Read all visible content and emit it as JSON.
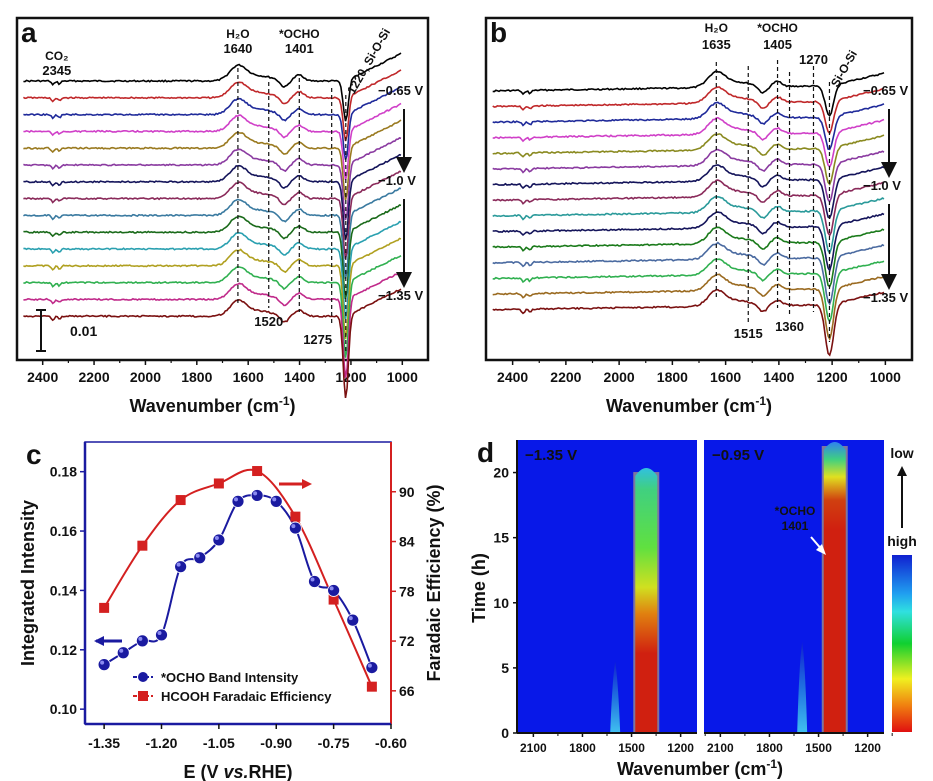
{
  "chart_data": [
    {
      "panel": "a",
      "type": "line",
      "title": "",
      "xlabel": "Wavenumber (cm-1)",
      "xlabel_main": "Wavenumber (cm",
      "xlabel_sup": "-1",
      "xlabel_close": ")",
      "ylabel": "",
      "xlim": [
        2500,
        900
      ],
      "xticks": [
        2400,
        2200,
        2000,
        1800,
        1600,
        1400,
        1200,
        1000
      ],
      "scale_bar_label": "0.01",
      "n_spectra": 15,
      "series_colors": [
        "#000000",
        "#c0282a",
        "#1f2a9a",
        "#d040c8",
        "#9a7a20",
        "#8a3aa0",
        "#14145a",
        "#8a2a5a",
        "#3a7aa0",
        "#1a6a1a",
        "#2aa0b0",
        "#b0a020",
        "#30b050",
        "#c02a8a",
        "#7a1010"
      ],
      "voltage_labels": [
        "−0.65 V",
        "−1.0 V",
        "−1.35 V"
      ],
      "peaks": [
        {
          "label_top": "CO₂",
          "label_bottom": "2345",
          "x": 2345,
          "line": false
        },
        {
          "label_top": "H₂O",
          "label_bottom": "1640",
          "x": 1640,
          "line": true
        },
        {
          "label_top": "*OCHO",
          "label_bottom": "1401",
          "x": 1401,
          "line": true
        },
        {
          "label_top": "",
          "label_bottom": "1520",
          "x": 1520,
          "line": true,
          "label_pos": "below"
        },
        {
          "label_top": "",
          "label_bottom": "1275",
          "x": 1275,
          "line": true,
          "label_pos": "below"
        },
        {
          "label_top": "1220, Si-O-Si",
          "label_bottom": "",
          "x": 1220,
          "line": true,
          "label_pos": "rotated"
        }
      ]
    },
    {
      "panel": "b",
      "type": "line",
      "xlabel": "Wavenumber (cm-1)",
      "xlabel_main": "Wavenumber (cm",
      "xlabel_sup": "-1",
      "xlabel_close": ")",
      "xlim": [
        2500,
        900
      ],
      "xticks": [
        2400,
        2200,
        2000,
        1800,
        1600,
        1400,
        1200,
        1000
      ],
      "n_spectra": 15,
      "series_colors": [
        "#000000",
        "#c0282a",
        "#1f2a9a",
        "#d040c8",
        "#8a8a20",
        "#8a3aa0",
        "#14145a",
        "#8a2a5a",
        "#2a9a9a",
        "#14145a",
        "#1a7a1a",
        "#4a6aa0",
        "#30b050",
        "#9a6a20",
        "#7a1010"
      ],
      "voltage_labels": [
        "−0.65 V",
        "−1.0 V",
        "−1.35 V"
      ],
      "peaks": [
        {
          "label_top": "H₂O",
          "label_bottom": "1635",
          "x": 1635,
          "line": true
        },
        {
          "label_top": "*OCHO",
          "label_bottom": "1405",
          "x": 1405,
          "line": true
        },
        {
          "label_top": "",
          "label_bottom": "1270",
          "x": 1270,
          "line": true
        },
        {
          "label_top": "",
          "label_bottom": "1515",
          "x": 1515,
          "line": true,
          "label_pos": "below"
        },
        {
          "label_top": "",
          "label_bottom": "1360",
          "x": 1360,
          "line": true,
          "label_pos": "below"
        },
        {
          "label_top": "Si-O-Si",
          "label_bottom": "",
          "x": 1210,
          "line": true,
          "label_pos": "rotated"
        }
      ]
    },
    {
      "panel": "c",
      "type": "line",
      "xlabel": "E (V vs.RHE)",
      "xlabel_pre": "E (V ",
      "xlabel_italic": "vs.",
      "xlabel_post": "RHE)",
      "ylabel": "Integrated Intensity",
      "ylabel_right": "Faradaic Efficiency (%)",
      "xlim": [
        -1.4,
        -0.6
      ],
      "ylim": [
        0.095,
        0.19
      ],
      "ylim_right": [
        62,
        96
      ],
      "xticks": [
        "-1.35",
        "-1.20",
        "-1.05",
        "-0.90",
        "-0.75",
        "-0.60"
      ],
      "yticks": [
        "0.10",
        "0.12",
        "0.14",
        "0.16",
        "0.18"
      ],
      "yticks_right": [
        "66",
        "72",
        "78",
        "84",
        "90"
      ],
      "series": [
        {
          "name": "*OCHO Band Intensity",
          "axis": "left",
          "color": "#1a1aa0",
          "marker": "circle",
          "x": [
            -1.35,
            -1.3,
            -1.25,
            -1.2,
            -1.15,
            -1.1,
            -1.05,
            -1.0,
            -0.95,
            -0.9,
            -0.85,
            -0.8,
            -0.75,
            -0.7,
            -0.65
          ],
          "values": [
            0.115,
            0.119,
            0.123,
            0.125,
            0.148,
            0.151,
            0.157,
            0.17,
            0.172,
            0.17,
            0.161,
            0.143,
            0.14,
            0.13,
            0.114
          ]
        },
        {
          "name": "HCOOH Faradaic Efficiency",
          "axis": "right",
          "color": "#d42020",
          "marker": "square",
          "x": [
            -1.35,
            -1.25,
            -1.15,
            -1.05,
            -0.95,
            -0.85,
            -0.75,
            -0.65
          ],
          "values": [
            76,
            83.5,
            89,
            91,
            92.5,
            87,
            77,
            66.5
          ]
        }
      ],
      "legend_position": "bottom-center"
    },
    {
      "panel": "d",
      "type": "heatmap",
      "xlabel": "Wavenumber (cm-1)",
      "xlabel_main": "Wavenumber (cm",
      "xlabel_sup": "-1",
      "xlabel_close": ")",
      "ylabel": "Time (h)",
      "xlim": [
        2200,
        1100
      ],
      "ylim": [
        0,
        22.5
      ],
      "xticks": [
        "2100",
        "1800",
        "1500",
        "1200"
      ],
      "yticks": [
        "0",
        "5",
        "10",
        "15",
        "20"
      ],
      "subplots": [
        {
          "label": "−1.35 V",
          "band_center": 1410,
          "band_max_time": 20.5,
          "weak_band_center": 1600,
          "weak_band_max_time": 5.5
        },
        {
          "label": "−0.95 V",
          "band_center": 1401,
          "band_max_time": 22.5,
          "weak_band_center": 1600,
          "weak_band_max_time": 7
        }
      ],
      "annotation": {
        "line1": "*OCHO",
        "line2": "1401"
      },
      "colorbar": {
        "top_label": "low",
        "bottom_label": "high"
      }
    }
  ],
  "panel_labels": [
    "a",
    "b",
    "c",
    "d"
  ]
}
